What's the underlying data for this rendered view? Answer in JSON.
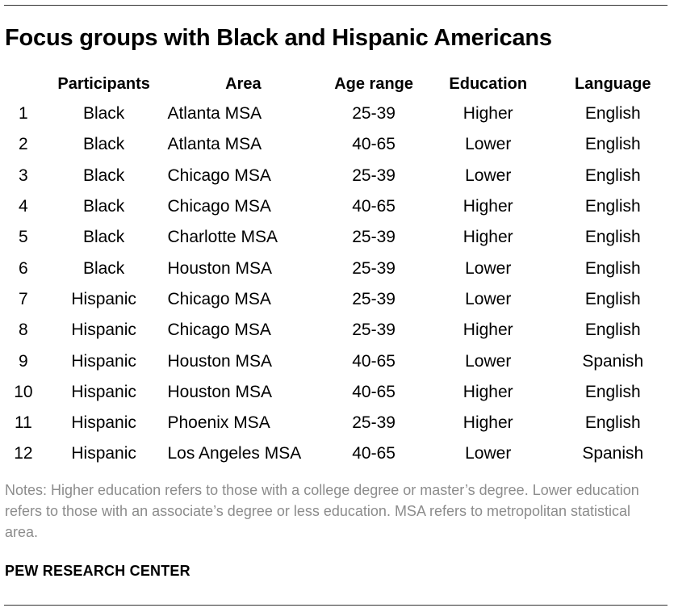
{
  "title": "Focus groups with Black and Hispanic Americans",
  "table": {
    "headers": {
      "number": "",
      "participants": "Participants",
      "area": "Area",
      "age_range": "Age range",
      "education": "Education",
      "language": "Language"
    },
    "rows": [
      {
        "number": "1",
        "participants": "Black",
        "area": "Atlanta MSA",
        "age_range": "25-39",
        "education": "Higher",
        "language": "English"
      },
      {
        "number": "2",
        "participants": "Black",
        "area": "Atlanta MSA",
        "age_range": "40-65",
        "education": "Lower",
        "language": "English"
      },
      {
        "number": "3",
        "participants": "Black",
        "area": "Chicago MSA",
        "age_range": "25-39",
        "education": "Lower",
        "language": "English"
      },
      {
        "number": "4",
        "participants": "Black",
        "area": "Chicago MSA",
        "age_range": "40-65",
        "education": "Higher",
        "language": "English"
      },
      {
        "number": "5",
        "participants": "Black",
        "area": "Charlotte MSA",
        "age_range": "25-39",
        "education": "Higher",
        "language": "English"
      },
      {
        "number": "6",
        "participants": "Black",
        "area": "Houston MSA",
        "age_range": "25-39",
        "education": "Lower",
        "language": "English"
      },
      {
        "number": "7",
        "participants": "Hispanic",
        "area": "Chicago MSA",
        "age_range": "25-39",
        "education": "Lower",
        "language": "English"
      },
      {
        "number": "8",
        "participants": "Hispanic",
        "area": "Chicago MSA",
        "age_range": "25-39",
        "education": "Higher",
        "language": "English"
      },
      {
        "number": "9",
        "participants": "Hispanic",
        "area": "Houston MSA",
        "age_range": "40-65",
        "education": "Lower",
        "language": "Spanish"
      },
      {
        "number": "10",
        "participants": "Hispanic",
        "area": "Houston MSA",
        "age_range": "40-65",
        "education": "Higher",
        "language": "English"
      },
      {
        "number": "11",
        "participants": "Hispanic",
        "area": "Phoenix MSA",
        "age_range": "25-39",
        "education": "Higher",
        "language": "English"
      },
      {
        "number": "12",
        "participants": "Hispanic",
        "area": "Los Angeles MSA",
        "age_range": "40-65",
        "education": "Lower",
        "language": "Spanish"
      }
    ]
  },
  "notes": "Notes: Higher education refers to those with a college degree or master’s degree. Lower education refers to those with an associate’s degree or less education. MSA refers to metropolitan statistical area.",
  "source": "PEW RESEARCH CENTER",
  "colors": {
    "text": "#000000",
    "notes_text": "#8c8c8c",
    "rule": "#333333"
  }
}
